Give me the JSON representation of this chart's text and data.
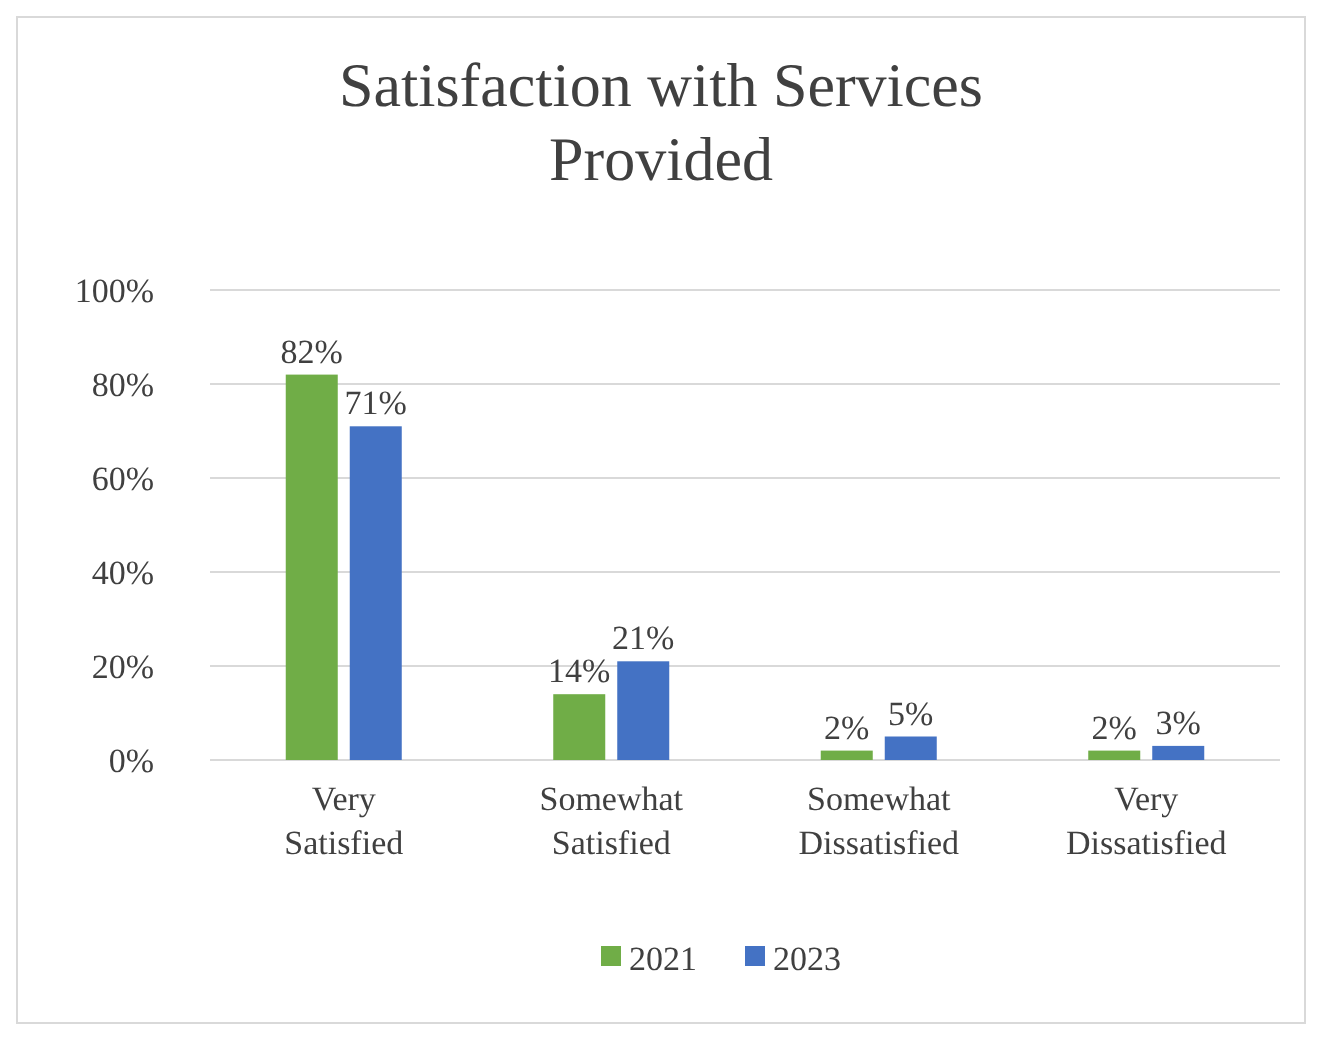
{
  "chart_data": {
    "type": "bar",
    "title": "Satisfaction with Services Provided",
    "categories": [
      "Very Satisfied",
      "Somewhat Satisfied",
      "Somewhat Dissatisfied",
      "Very Dissatisfied"
    ],
    "series": [
      {
        "name": "2021",
        "color": "#70ad47",
        "values": [
          82,
          14,
          2,
          2
        ],
        "value_labels": [
          "82%",
          "14%",
          "2%",
          "2%"
        ]
      },
      {
        "name": "2023",
        "color": "#4472c4",
        "values": [
          71,
          21,
          5,
          3
        ],
        "value_labels": [
          "71%",
          "21%",
          "5%",
          "3%"
        ]
      }
    ],
    "ylim": [
      0,
      100
    ],
    "yticks": [
      {
        "value": 0,
        "label": "0%"
      },
      {
        "value": 20,
        "label": "20%"
      },
      {
        "value": 40,
        "label": "40%"
      },
      {
        "value": 60,
        "label": "60%"
      },
      {
        "value": 80,
        "label": "80%"
      },
      {
        "value": 100,
        "label": "100%"
      }
    ],
    "grid": "y",
    "legend": "bottom"
  }
}
